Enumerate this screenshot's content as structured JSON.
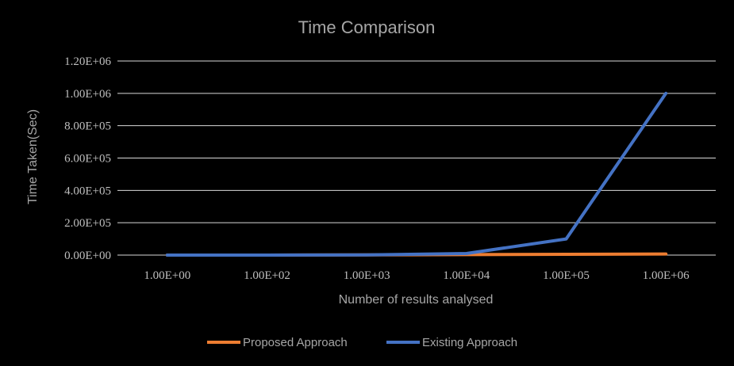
{
  "chart_data": {
    "type": "line",
    "title": "Time Comparison",
    "xlabel": "Number of results analysed",
    "ylabel": "Time Taken(Sec)",
    "categories": [
      "1.00E+00",
      "1.00E+02",
      "1.00E+03",
      "1.00E+04",
      "1.00E+05",
      "1.00E+06"
    ],
    "y_ticks": [
      "0.00E+00",
      "2.00E+05",
      "4.00E+05",
      "6.00E+05",
      "8.00E+05",
      "1.00E+06",
      "1.20E+06"
    ],
    "ylim": [
      0,
      1200000
    ],
    "grid": true,
    "legend_position": "bottom",
    "series": [
      {
        "name": "Proposed Approach",
        "color": "#ed7d31",
        "values": [
          1,
          100,
          1000,
          3000,
          5000,
          7000
        ]
      },
      {
        "name": "Existing Approach",
        "color": "#4472c4",
        "values": [
          1,
          100,
          1000,
          10000,
          100000,
          1000000
        ]
      }
    ]
  }
}
